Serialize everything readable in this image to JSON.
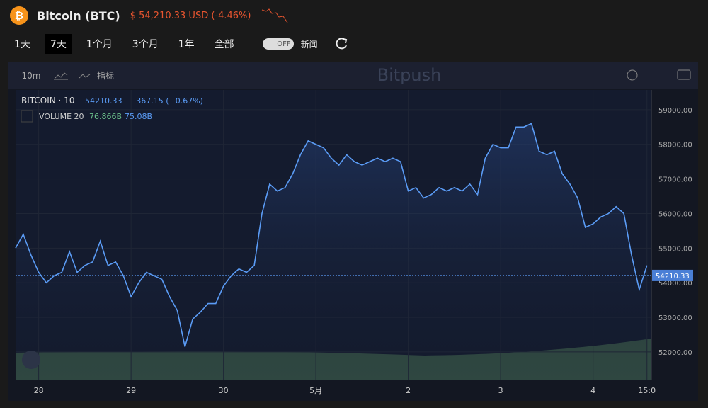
{
  "header": {
    "title": "Bitcoin (BTC)",
    "price": "$ 54,210.33 USD (-4.46%)"
  },
  "tabs": [
    "1天",
    "7天",
    "1个月",
    "3个月",
    "1年",
    "全部"
  ],
  "toggle": "OFF",
  "news": "新闻",
  "toolbar": {
    "interval": "10m",
    "indicators": "指标",
    "watermark": "Bitpush"
  },
  "chart_data": {
    "type": "line",
    "last_price": 54210.33,
    "change": "−367.15 (−0.67%)",
    "volume_label": "VOLUME 20",
    "volume_values": [
      "76.866B",
      "75.08B"
    ],
    "categories": [
      null,
      null,
      null,
      "28",
      null,
      null,
      null,
      null,
      null,
      null,
      null,
      null,
      null,
      null,
      null,
      "29",
      null,
      null,
      null,
      null,
      null,
      null,
      null,
      null,
      null,
      null,
      null,
      "30",
      null,
      null,
      null,
      null,
      null,
      null,
      null,
      null,
      null,
      null,
      null,
      "5月",
      null,
      null,
      null,
      null,
      null,
      null,
      null,
      null,
      null,
      null,
      null,
      "2",
      null,
      null,
      null,
      null,
      null,
      null,
      null,
      null,
      null,
      null,
      null,
      "3",
      null,
      null,
      null,
      null,
      null,
      null,
      null,
      null,
      null,
      null,
      null,
      "4",
      null,
      null,
      null,
      null,
      null,
      null,
      "15:0"
    ],
    "series": [
      {
        "name": "BITCOIN · 10",
        "color": "#5b9cf6",
        "values": [
          55000,
          55400,
          54800,
          54300,
          54000,
          54200,
          54300,
          54900,
          54300,
          54500,
          54600,
          55200,
          54500,
          54600,
          54200,
          53600,
          54000,
          54300,
          54200,
          54100,
          53600,
          53200,
          52150,
          52950,
          53150,
          53400,
          53400,
          53900,
          54200,
          54400,
          54300,
          54500,
          56000,
          56850,
          56650,
          56750,
          57150,
          57700,
          58100,
          58000,
          57900,
          57600,
          57400,
          57700,
          57500,
          57400,
          57500,
          57600,
          57500,
          57600,
          57500,
          56650,
          56750,
          56450,
          56550,
          56750,
          56650,
          56750,
          56650,
          56850,
          56550,
          57600,
          58000,
          57900,
          57900,
          58500,
          58500,
          58600,
          57800,
          57700,
          57800,
          57150,
          56850,
          56450,
          55600,
          55700,
          55900,
          56000,
          56200,
          56000,
          54800,
          53800,
          54500
        ]
      }
    ],
    "ylim": [
      51180,
      59570
    ],
    "yticks": [
      {
        "value": 52000,
        "label": "52000.00"
      },
      {
        "value": 53000,
        "label": "53000.00"
      },
      {
        "value": 54000,
        "label": "54000.00"
      },
      {
        "value": 55000,
        "label": "55000.00"
      },
      {
        "value": 56000,
        "label": "56000.00"
      },
      {
        "value": 57000,
        "label": "57000.00"
      },
      {
        "value": 58000,
        "label": "58000.00"
      },
      {
        "value": 59000,
        "label": "59000.00"
      }
    ],
    "grid": true
  }
}
